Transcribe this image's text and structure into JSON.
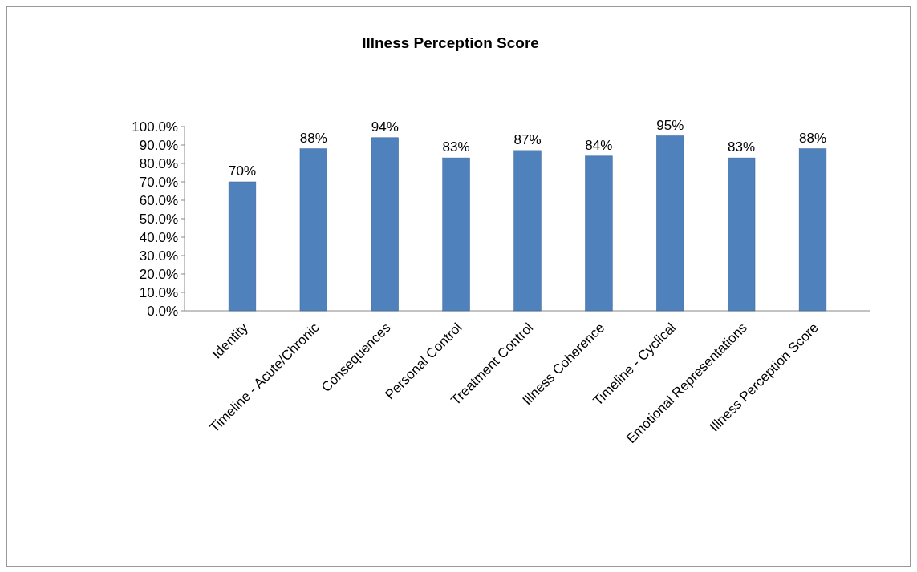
{
  "chart_data": {
    "type": "bar",
    "title": "Illness Perception Score",
    "categories": [
      "Identity",
      "Timeline - Acute/Chronic",
      "Consequences",
      "Personal Control",
      "Treatment Control",
      "Illness Coherence",
      "Timeline  - Cyclical",
      "Emotional Representations",
      "Illness Perception Score"
    ],
    "values": [
      70,
      88,
      94,
      83,
      87,
      84,
      95,
      83,
      88
    ],
    "value_labels": [
      "70%",
      "88%",
      "94%",
      "83%",
      "87%",
      "84%",
      "95%",
      "83%",
      "88%"
    ],
    "color": "#4f81bd",
    "ylim": [
      0,
      100
    ],
    "yticks": [
      {
        "value": 0,
        "label": "0.0%"
      },
      {
        "value": 10,
        "label": "10.0%"
      },
      {
        "value": 20,
        "label": "20.0%"
      },
      {
        "value": 30,
        "label": "30.0%"
      },
      {
        "value": 40,
        "label": "40.0%"
      },
      {
        "value": 50,
        "label": "50.0%"
      },
      {
        "value": 60,
        "label": "60.0%"
      },
      {
        "value": 70,
        "label": "70.0%"
      },
      {
        "value": 80,
        "label": "80.0%"
      },
      {
        "value": 90,
        "label": "90.0%"
      },
      {
        "value": 100,
        "label": "100.0%"
      }
    ]
  }
}
